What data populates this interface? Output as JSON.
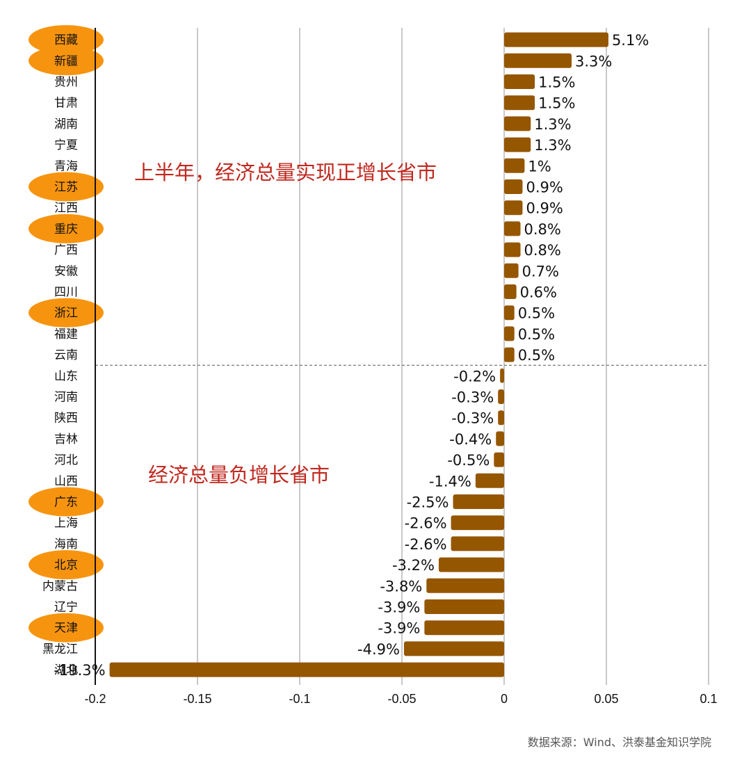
{
  "chart_data": {
    "type": "bar",
    "orientation": "horizontal",
    "categories": [
      "西藏",
      "新疆",
      "贵州",
      "甘肃",
      "湖南",
      "宁夏",
      "青海",
      "江苏",
      "江西",
      "重庆",
      "广西",
      "安徽",
      "四川",
      "浙江",
      "福建",
      "云南",
      "山东",
      "河南",
      "陕西",
      "吉林",
      "河北",
      "山西",
      "广东",
      "上海",
      "海南",
      "北京",
      "内蒙古",
      "辽宁",
      "天津",
      "黑龙江",
      "湖北"
    ],
    "values": [
      0.051,
      0.033,
      0.015,
      0.015,
      0.013,
      0.013,
      0.01,
      0.009,
      0.009,
      0.008,
      0.008,
      0.007,
      0.006,
      0.005,
      0.005,
      0.005,
      -0.002,
      -0.003,
      -0.003,
      -0.004,
      -0.005,
      -0.014,
      -0.025,
      -0.026,
      -0.026,
      -0.032,
      -0.038,
      -0.039,
      -0.039,
      -0.049,
      -0.193
    ],
    "data_labels": [
      "5.1%",
      "3.3%",
      "1.5%",
      "1.5%",
      "1.3%",
      "1.3%",
      "1%",
      "0.9%",
      "0.9%",
      "0.8%",
      "0.8%",
      "0.7%",
      "0.6%",
      "0.5%",
      "0.5%",
      "0.5%",
      "-0.2%",
      "-0.3%",
      "-0.3%",
      "-0.4%",
      "-0.5%",
      "-1.4%",
      "-2.5%",
      "-2.6%",
      "-2.6%",
      "-3.2%",
      "-3.8%",
      "-3.9%",
      "-3.9%",
      "-4.9%",
      "-19.3%"
    ],
    "highlighted": [
      "西藏",
      "新疆",
      "江苏",
      "重庆",
      "浙江",
      "广东",
      "北京",
      "天津"
    ],
    "xlim": [
      -0.2,
      0.1
    ],
    "xticks": [
      -0.2,
      -0.15,
      -0.1,
      -0.05,
      0,
      0.05,
      0.1
    ],
    "xtick_labels": [
      "-0.2",
      "-0.15",
      "-0.1",
      "-0.05",
      "0",
      "0.05",
      "0.1"
    ],
    "grid": "vertical",
    "annotations": [
      "上半年，经济总量实现正增长省市",
      "经济总量负增长省市"
    ],
    "source": "数据来源：Wind、洪泰基金知识学院",
    "colors": {
      "bar": "#955600",
      "highlight": "#f7940f",
      "annotation": "#c0281e",
      "grid": "#c8c8c8"
    }
  }
}
